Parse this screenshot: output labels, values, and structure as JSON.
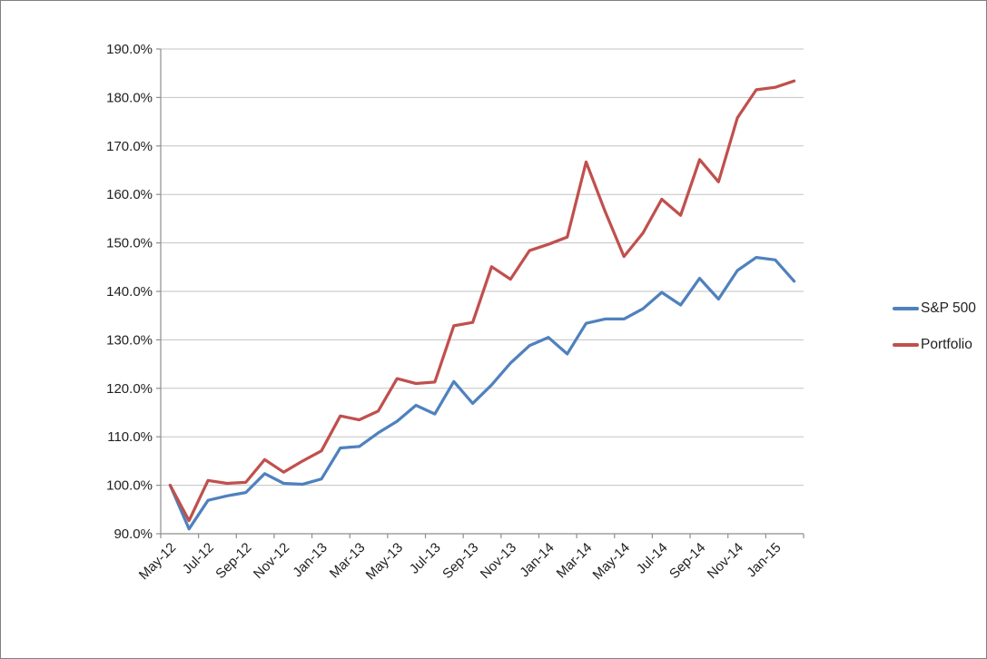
{
  "chart_data": {
    "type": "line",
    "title": "",
    "xlabel": "",
    "ylabel": "",
    "grid": true,
    "legend_position": "right",
    "x_categories": [
      "May-12",
      "Jun-12",
      "Jul-12",
      "Aug-12",
      "Sep-12",
      "Oct-12",
      "Nov-12",
      "Dec-12",
      "Jan-13",
      "Feb-13",
      "Mar-13",
      "Apr-13",
      "May-13",
      "Jun-13",
      "Jul-13",
      "Aug-13",
      "Sep-13",
      "Oct-13",
      "Nov-13",
      "Dec-13",
      "Jan-14",
      "Feb-14",
      "Mar-14",
      "Apr-14",
      "May-14",
      "Jun-14",
      "Jul-14",
      "Aug-14",
      "Sep-14",
      "Oct-14",
      "Nov-14",
      "Dec-14",
      "Jan-15",
      "Feb-15"
    ],
    "x_tick_labels": [
      "May-12",
      "Jul-12",
      "Sep-12",
      "Nov-12",
      "Jan-13",
      "Mar-13",
      "May-13",
      "Jul-13",
      "Sep-13",
      "Nov-13",
      "Jan-14",
      "Mar-14",
      "May-14",
      "Jul-14",
      "Sep-14",
      "Nov-14",
      "Jan-15"
    ],
    "y_axis": {
      "min": 90,
      "max": 190,
      "step": 10,
      "tick_labels": [
        "90.0%",
        "100.0%",
        "110.0%",
        "120.0%",
        "130.0%",
        "140.0%",
        "150.0%",
        "160.0%",
        "170.0%",
        "180.0%",
        "190.0%"
      ]
    },
    "series": [
      {
        "name": "S&P 500",
        "color": "#4F81BD",
        "values": [
          100.0,
          91.0,
          96.9,
          97.8,
          98.5,
          102.4,
          100.4,
          100.2,
          101.3,
          107.7,
          108.0,
          110.8,
          113.2,
          116.5,
          114.7,
          121.4,
          116.9,
          120.7,
          125.2,
          128.8,
          130.5,
          127.1,
          133.4,
          134.3,
          134.3,
          136.4,
          139.8,
          137.2,
          142.7,
          138.4,
          144.3,
          147.0,
          146.5,
          142.1
        ]
      },
      {
        "name": "Portfolio",
        "color": "#C0504D",
        "values": [
          100.0,
          92.7,
          101.0,
          100.4,
          100.6,
          105.3,
          102.7,
          105.0,
          107.1,
          114.3,
          113.5,
          115.3,
          122.0,
          121.0,
          121.3,
          132.9,
          133.6,
          145.1,
          142.5,
          148.4,
          149.7,
          151.2,
          166.7,
          156.5,
          147.2,
          152.0,
          159.0,
          155.7,
          167.2,
          162.6,
          175.8,
          181.6,
          182.1,
          183.4
        ]
      }
    ],
    "colors": {
      "gridline": "#C3C3C3",
      "axis": "#8E8E8E",
      "text": "#1F1F1F",
      "background": "#FFFFFF",
      "border": "#808080"
    }
  }
}
